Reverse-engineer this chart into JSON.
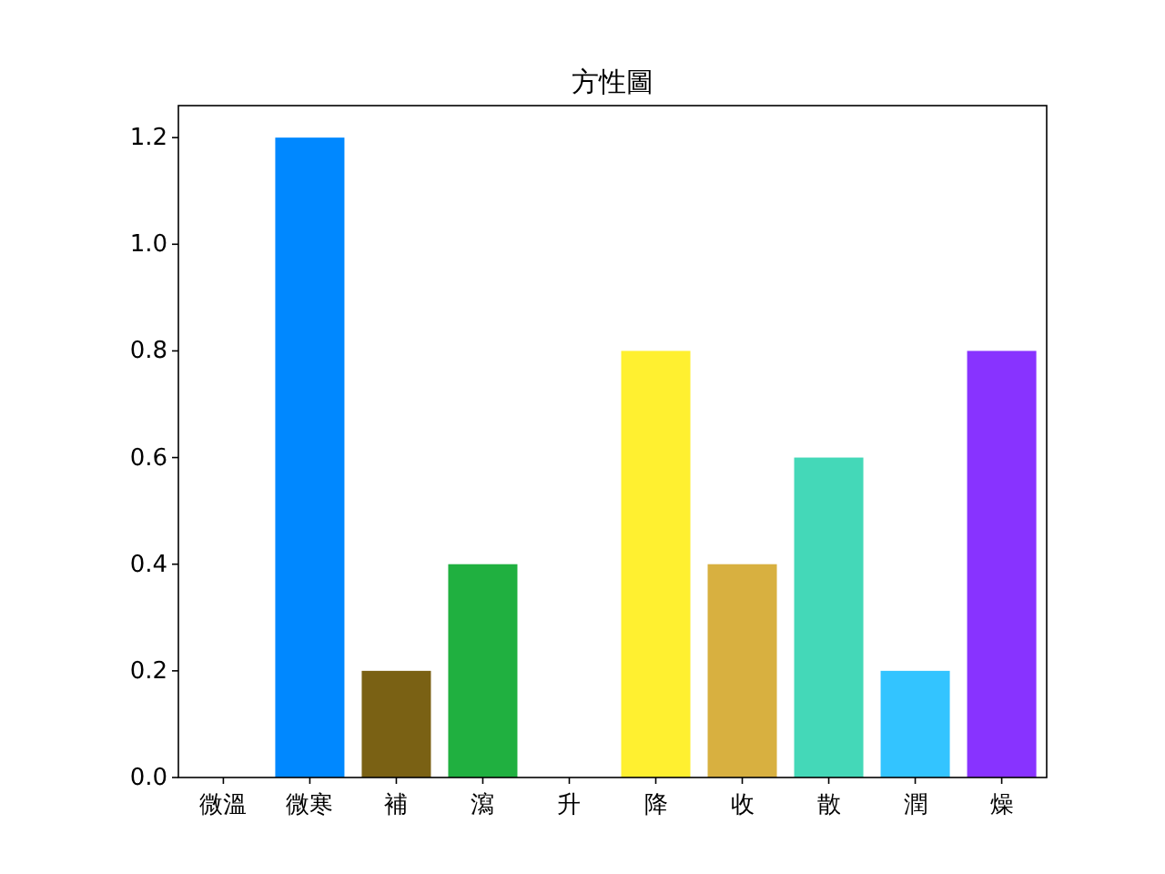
{
  "chart_data": {
    "type": "bar",
    "title": "方性圖",
    "categories": [
      "微溫",
      "微寒",
      "補",
      "瀉",
      "升",
      "降",
      "收",
      "散",
      "潤",
      "燥"
    ],
    "values": [
      0,
      1.2,
      0.2,
      0.4,
      0,
      0.8,
      0.4,
      0.6,
      0.2,
      0.8
    ],
    "colors": [
      "#e05050",
      "#0088ff",
      "#7a6114",
      "#20b040",
      "#a0a0a0",
      "#fff030",
      "#d8b040",
      "#44d8b8",
      "#33c4ff",
      "#8833ff"
    ],
    "ylim": [
      0,
      1.26
    ],
    "yticks": [
      {
        "value": 0,
        "label": "0.0"
      },
      {
        "value": 0.2,
        "label": "0.2"
      },
      {
        "value": 0.4,
        "label": "0.4"
      },
      {
        "value": 0.6,
        "label": "0.6"
      },
      {
        "value": 0.8,
        "label": "0.8"
      },
      {
        "value": 1,
        "label": "1.0"
      },
      {
        "value": 1.2,
        "label": "1.2"
      }
    ],
    "grid": false
  }
}
